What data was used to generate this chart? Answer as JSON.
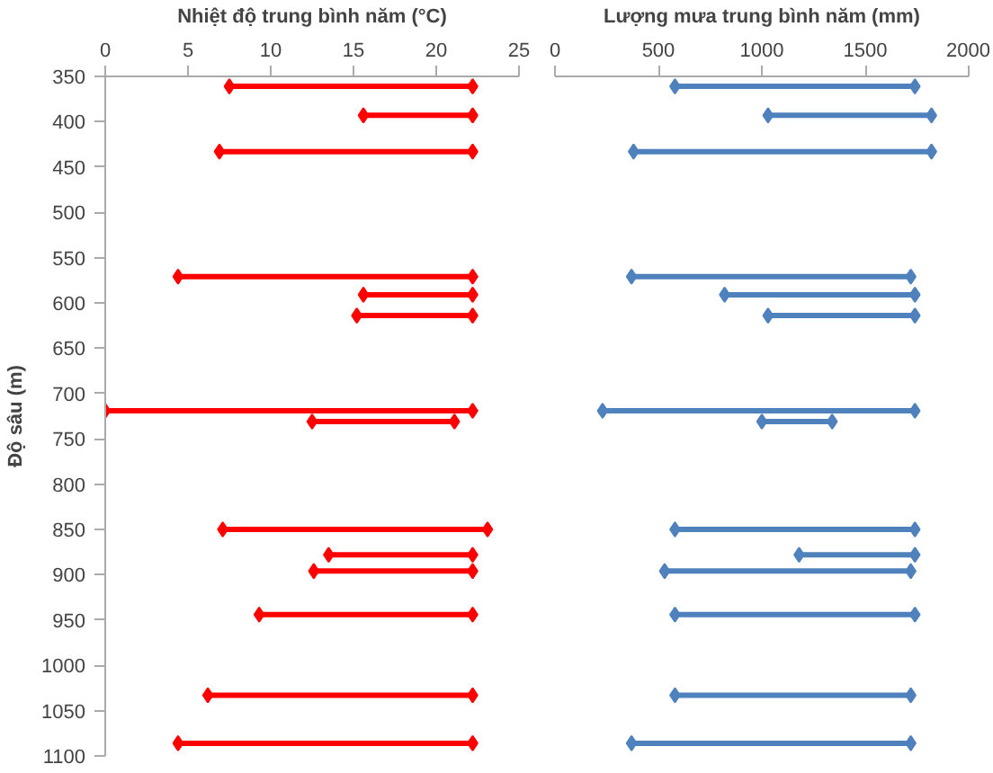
{
  "chart_data": [
    {
      "type": "line",
      "xlabel": "Nhiệt độ trung bình năm (°C)",
      "ylabel": "Độ sâu (m)",
      "marker": "diamond",
      "line_style": "solid",
      "grid": false,
      "series": [
        {
          "color": "#ff0000",
          "x": [
            7.5,
            22.2
          ],
          "values": [
            361,
            361
          ]
        },
        {
          "color": "#ff0000",
          "x": [
            15.6,
            22.2
          ],
          "values": [
            393,
            393
          ]
        },
        {
          "color": "#ff0000",
          "x": [
            6.9,
            22.2
          ],
          "values": [
            433,
            433
          ]
        },
        {
          "color": "#ff0000",
          "x": [
            4.4,
            22.2
          ],
          "values": [
            571,
            571
          ]
        },
        {
          "color": "#ff0000",
          "x": [
            15.6,
            22.2
          ],
          "values": [
            591,
            591
          ]
        },
        {
          "color": "#ff0000",
          "x": [
            15.2,
            22.2
          ],
          "values": [
            614,
            614
          ]
        },
        {
          "color": "#ff0000",
          "x": [
            0,
            22.2
          ],
          "values": [
            719,
            719
          ]
        },
        {
          "color": "#ff0000",
          "x": [
            12.5,
            21.1
          ],
          "values": [
            731,
            731
          ]
        },
        {
          "color": "#ff0000",
          "x": [
            7.1,
            23.1
          ],
          "values": [
            850,
            850
          ]
        },
        {
          "color": "#ff0000",
          "x": [
            13.5,
            22.2
          ],
          "values": [
            878,
            878
          ]
        },
        {
          "color": "#ff0000",
          "x": [
            12.6,
            22.2
          ],
          "values": [
            896,
            896
          ]
        },
        {
          "color": "#ff0000",
          "x": [
            9.3,
            22.2
          ],
          "values": [
            944,
            944
          ]
        },
        {
          "color": "#ff0000",
          "x": [
            6.2,
            22.2
          ],
          "values": [
            1033,
            1033
          ]
        },
        {
          "color": "#ff0000",
          "x": [
            4.4,
            22.2
          ],
          "values": [
            1086,
            1086
          ]
        }
      ],
      "xlim": [
        0,
        25
      ],
      "xticks": [
        0,
        5,
        10,
        15,
        20,
        25
      ],
      "ylim": [
        1100,
        350
      ],
      "yticks": [
        350,
        400,
        450,
        500,
        550,
        600,
        650,
        700,
        750,
        800,
        850,
        900,
        950,
        1000,
        1050,
        1100
      ]
    },
    {
      "type": "line",
      "xlabel": "Lượng mưa trung bình năm (mm)",
      "marker": "diamond",
      "line_style": "solid",
      "grid": false,
      "tick_labels": "x",
      "series": [
        {
          "color": "#4f81bd",
          "x": [
            580,
            1740
          ],
          "values": [
            361,
            361
          ]
        },
        {
          "color": "#4f81bd",
          "x": [
            1030,
            1820
          ],
          "values": [
            393,
            393
          ]
        },
        {
          "color": "#4f81bd",
          "x": [
            380,
            1820
          ],
          "values": [
            433,
            433
          ]
        },
        {
          "color": "#4f81bd",
          "x": [
            370,
            1720
          ],
          "values": [
            571,
            571
          ]
        },
        {
          "color": "#4f81bd",
          "x": [
            820,
            1740
          ],
          "values": [
            591,
            591
          ]
        },
        {
          "color": "#4f81bd",
          "x": [
            1030,
            1740
          ],
          "values": [
            614,
            614
          ]
        },
        {
          "color": "#4f81bd",
          "x": [
            230,
            1740
          ],
          "values": [
            719,
            719
          ]
        },
        {
          "color": "#4f81bd",
          "x": [
            1000,
            1340
          ],
          "values": [
            731,
            731
          ]
        },
        {
          "color": "#4f81bd",
          "x": [
            580,
            1740
          ],
          "values": [
            850,
            850
          ]
        },
        {
          "color": "#4f81bd",
          "x": [
            1180,
            1740
          ],
          "values": [
            878,
            878
          ]
        },
        {
          "color": "#4f81bd",
          "x": [
            530,
            1720
          ],
          "values": [
            896,
            896
          ]
        },
        {
          "color": "#4f81bd",
          "x": [
            580,
            1740
          ],
          "values": [
            944,
            944
          ]
        },
        {
          "color": "#4f81bd",
          "x": [
            580,
            1720
          ],
          "values": [
            1033,
            1033
          ]
        },
        {
          "color": "#4f81bd",
          "x": [
            370,
            1720
          ],
          "values": [
            1086,
            1086
          ]
        }
      ],
      "xlim": [
        0,
        2000
      ],
      "xticks": [
        0,
        500,
        1000,
        1500,
        2000
      ],
      "ylim": [
        1100,
        350
      ]
    }
  ]
}
